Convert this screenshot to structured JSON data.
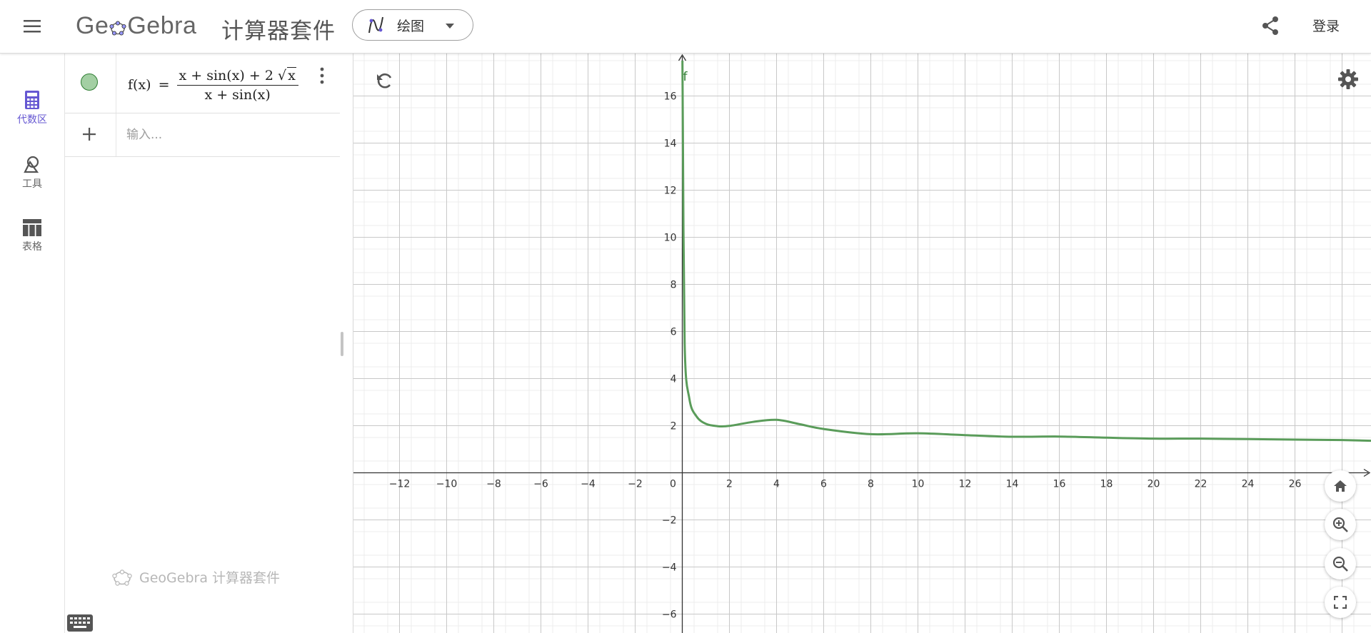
{
  "header": {
    "menu_icon": "menu-icon",
    "logo_text_left": "Ge",
    "logo_text_right": "Gebra",
    "suite_title": "计算器套件",
    "app_select": {
      "label": "绘图",
      "icon": "graphing-icon"
    },
    "share_icon": "share-icon",
    "login_label": "登录"
  },
  "sidebar": {
    "items": [
      {
        "label": "代数区",
        "icon": "calculator-icon",
        "active": true
      },
      {
        "label": "工具",
        "icon": "tools-icon",
        "active": false
      },
      {
        "label": "表格",
        "icon": "table-icon",
        "active": false
      }
    ]
  },
  "algebra": {
    "function_name": "f(x)",
    "equals": "=",
    "numerator_text": "x + sin(x) + 2 ",
    "sqrt_arg": "x",
    "denominator_text": "x + sin(x)",
    "marble_color": "#a3cfa3",
    "input_placeholder": "输入...",
    "footer_text": "GeoGebra 计算器套件"
  },
  "graph": {
    "function_label": "f",
    "curve_color": "#5a9c5a",
    "x_range": [
      -14,
      29
    ],
    "y_range": [
      -6.7,
      17.3
    ],
    "x_ticks": [
      "-12",
      "-10",
      "-8",
      "-6",
      "-4",
      "-2",
      "0",
      "2",
      "4",
      "6",
      "8",
      "10",
      "12",
      "14",
      "16",
      "18",
      "20",
      "22",
      "24",
      "26"
    ],
    "y_ticks_positive": [
      "2",
      "4",
      "6",
      "8",
      "10",
      "12",
      "14",
      "16"
    ],
    "y_ticks_negative": [
      "−2",
      "−4",
      "−6"
    ]
  },
  "chart_data": {
    "type": "line",
    "title": "",
    "xlabel": "",
    "ylabel": "",
    "series": [
      {
        "name": "f",
        "x": [
          0.02,
          0.1,
          0.3,
          0.6,
          1,
          1.5,
          2,
          3,
          4,
          5,
          6,
          8,
          10,
          12,
          14,
          16,
          18,
          20,
          22,
          24,
          26,
          28
        ],
        "values": [
          15.1,
          5.5,
          3.15,
          2.4,
          2.08,
          1.98,
          1.99,
          2.16,
          2.25,
          2.06,
          1.86,
          1.64,
          1.68,
          1.6,
          1.53,
          1.54,
          1.49,
          1.45,
          1.45,
          1.43,
          1.41,
          1.39
        ]
      }
    ],
    "xlim": [
      -14,
      29
    ],
    "ylim": [
      -6.7,
      17.3
    ],
    "grid": true
  }
}
